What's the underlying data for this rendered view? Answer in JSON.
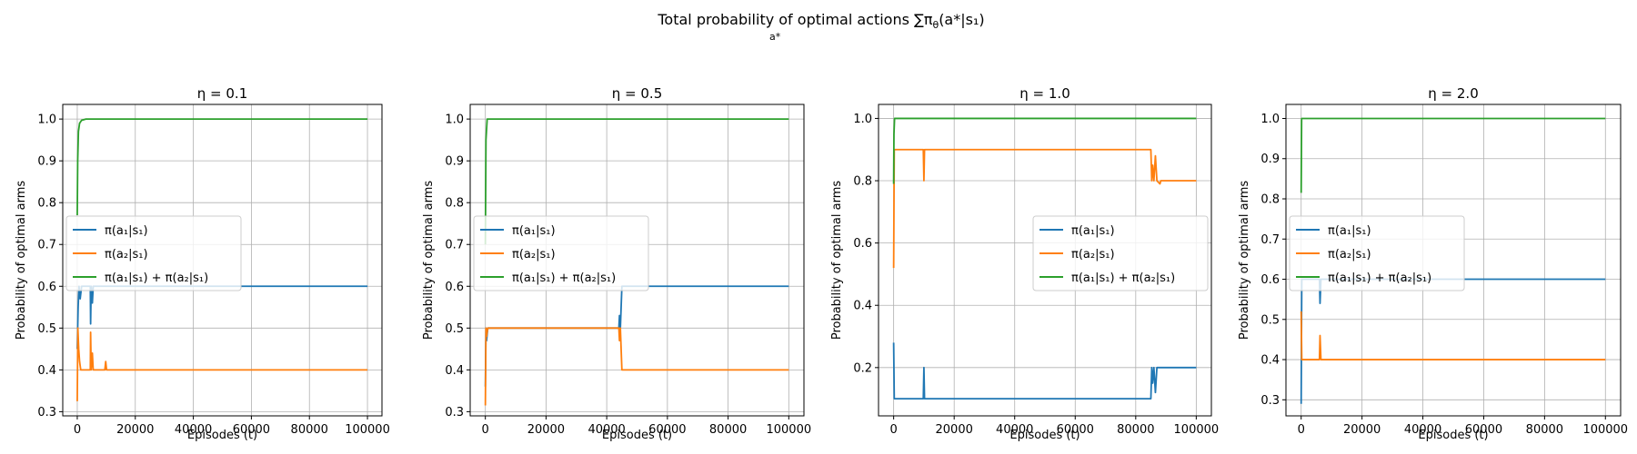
{
  "figure": {
    "suptitle": "Total probability of optimal actions ∑π",
    "suptitle_sub": "θ",
    "suptitle_tail": "(a*|s₁)",
    "suptitle_under": "a*"
  },
  "legend_labels": {
    "s1": "π(a₁|s₁)",
    "s2": "π(a₂|s₁)",
    "s3": "π(a₁|s₁) + π(a₂|s₁)"
  },
  "colors": {
    "blue": "#1f77b4",
    "orange": "#ff7f0e",
    "green": "#2ca02c",
    "grid": "#b0b0b0"
  },
  "chart_data": [
    {
      "type": "line",
      "title": "η = 0.1",
      "xlabel": "Episodes (t)",
      "ylabel": "Probability of optimal arms",
      "xlim": [
        -5000,
        105000
      ],
      "ylim": [
        0.29,
        1.035
      ],
      "xticks": [
        0,
        20000,
        40000,
        60000,
        80000,
        100000
      ],
      "yticks": [
        0.3,
        0.4,
        0.5,
        0.6,
        0.7,
        0.8,
        0.9,
        1.0
      ],
      "grid": true,
      "legend_position": "center-left",
      "series": [
        {
          "key": "s1",
          "color": "#1f77b4",
          "points": [
            [
              0,
              0.45
            ],
            [
              300,
              0.55
            ],
            [
              600,
              0.6
            ],
            [
              1000,
              0.57
            ],
            [
              1500,
              0.6
            ],
            [
              2500,
              0.6
            ],
            [
              4500,
              0.6
            ],
            [
              4600,
              0.51
            ],
            [
              4800,
              0.6
            ],
            [
              5200,
              0.56
            ],
            [
              5500,
              0.6
            ],
            [
              100000,
              0.6
            ]
          ]
        },
        {
          "key": "s2",
          "color": "#ff7f0e",
          "points": [
            [
              0,
              0.325
            ],
            [
              200,
              0.5
            ],
            [
              500,
              0.45
            ],
            [
              800,
              0.42
            ],
            [
              1200,
              0.4
            ],
            [
              4500,
              0.4
            ],
            [
              4600,
              0.49
            ],
            [
              4800,
              0.4
            ],
            [
              5200,
              0.44
            ],
            [
              5500,
              0.4
            ],
            [
              9500,
              0.4
            ],
            [
              9800,
              0.42
            ],
            [
              10100,
              0.4
            ],
            [
              100000,
              0.4
            ]
          ]
        },
        {
          "key": "s3",
          "color": "#2ca02c",
          "points": [
            [
              0,
              0.77
            ],
            [
              150,
              0.9
            ],
            [
              400,
              0.97
            ],
            [
              800,
              0.99
            ],
            [
              1500,
              0.997
            ],
            [
              3000,
              1.0
            ],
            [
              100000,
              1.0
            ]
          ]
        }
      ]
    },
    {
      "type": "line",
      "title": "η = 0.5",
      "xlabel": "Episodes (t)",
      "ylabel": "Probability of optimal arms",
      "xlim": [
        -5000,
        105000
      ],
      "ylim": [
        0.29,
        1.035
      ],
      "xticks": [
        0,
        20000,
        40000,
        60000,
        80000,
        100000
      ],
      "yticks": [
        0.3,
        0.4,
        0.5,
        0.6,
        0.7,
        0.8,
        0.9,
        1.0
      ],
      "grid": true,
      "legend_position": "center-left",
      "series": [
        {
          "key": "s1",
          "color": "#1f77b4",
          "points": [
            [
              0,
              0.36
            ],
            [
              200,
              0.5
            ],
            [
              400,
              0.47
            ],
            [
              800,
              0.5
            ],
            [
              44000,
              0.5
            ],
            [
              44200,
              0.53
            ],
            [
              44500,
              0.5
            ],
            [
              45000,
              0.6
            ],
            [
              100000,
              0.6
            ]
          ]
        },
        {
          "key": "s2",
          "color": "#ff7f0e",
          "points": [
            [
              0,
              0.315
            ],
            [
              200,
              0.5
            ],
            [
              400,
              0.48
            ],
            [
              800,
              0.5
            ],
            [
              44000,
              0.5
            ],
            [
              44200,
              0.47
            ],
            [
              44500,
              0.5
            ],
            [
              45000,
              0.4
            ],
            [
              100000,
              0.4
            ]
          ]
        },
        {
          "key": "s3",
          "color": "#2ca02c",
          "points": [
            [
              0,
              0.7
            ],
            [
              200,
              0.95
            ],
            [
              600,
              1.0
            ],
            [
              100000,
              1.0
            ]
          ]
        }
      ]
    },
    {
      "type": "line",
      "title": "η = 1.0",
      "xlabel": "Episodes (t)",
      "ylabel": "Probability of optimal arms",
      "xlim": [
        -5000,
        105000
      ],
      "ylim": [
        0.045,
        1.045
      ],
      "xticks": [
        0,
        20000,
        40000,
        60000,
        80000,
        100000
      ],
      "yticks": [
        0.2,
        0.4,
        0.6,
        0.8,
        1.0
      ],
      "grid": true,
      "legend_position": "center-right",
      "series": [
        {
          "key": "s1",
          "color": "#1f77b4",
          "points": [
            [
              0,
              0.28
            ],
            [
              200,
              0.1
            ],
            [
              9800,
              0.1
            ],
            [
              10000,
              0.2
            ],
            [
              10200,
              0.1
            ],
            [
              85000,
              0.1
            ],
            [
              85300,
              0.2
            ],
            [
              85600,
              0.15
            ],
            [
              86000,
              0.2
            ],
            [
              86500,
              0.12
            ],
            [
              87000,
              0.2
            ],
            [
              100000,
              0.2
            ]
          ]
        },
        {
          "key": "s2",
          "color": "#ff7f0e",
          "points": [
            [
              0,
              0.52
            ],
            [
              200,
              0.9
            ],
            [
              9800,
              0.9
            ],
            [
              10000,
              0.8
            ],
            [
              10200,
              0.9
            ],
            [
              85000,
              0.9
            ],
            [
              85300,
              0.8
            ],
            [
              85600,
              0.85
            ],
            [
              86000,
              0.8
            ],
            [
              86500,
              0.88
            ],
            [
              87000,
              0.8
            ],
            [
              88000,
              0.79
            ],
            [
              88300,
              0.8
            ],
            [
              100000,
              0.8
            ]
          ]
        },
        {
          "key": "s3",
          "color": "#2ca02c",
          "points": [
            [
              0,
              0.79
            ],
            [
              100,
              0.95
            ],
            [
              300,
              1.0
            ],
            [
              100000,
              1.0
            ]
          ]
        }
      ]
    },
    {
      "type": "line",
      "title": "η = 2.0",
      "xlabel": "Episodes (t)",
      "ylabel": "Probability of optimal arms",
      "xlim": [
        -5000,
        105000
      ],
      "ylim": [
        0.26,
        1.035
      ],
      "xticks": [
        0,
        20000,
        40000,
        60000,
        80000,
        100000
      ],
      "yticks": [
        0.3,
        0.4,
        0.5,
        0.6,
        0.7,
        0.8,
        0.9,
        1.0
      ],
      "grid": true,
      "legend_position": "center-left",
      "series": [
        {
          "key": "s1",
          "color": "#1f77b4",
          "points": [
            [
              0,
              0.29
            ],
            [
              200,
              0.6
            ],
            [
              6000,
              0.6
            ],
            [
              6200,
              0.54
            ],
            [
              6500,
              0.6
            ],
            [
              100000,
              0.6
            ]
          ]
        },
        {
          "key": "s2",
          "color": "#ff7f0e",
          "points": [
            [
              0,
              0.52
            ],
            [
              200,
              0.4
            ],
            [
              6000,
              0.4
            ],
            [
              6200,
              0.46
            ],
            [
              6500,
              0.4
            ],
            [
              100000,
              0.4
            ]
          ]
        },
        {
          "key": "s3",
          "color": "#2ca02c",
          "points": [
            [
              0,
              0.815
            ],
            [
              150,
              1.0
            ],
            [
              100000,
              1.0
            ]
          ]
        }
      ]
    }
  ]
}
